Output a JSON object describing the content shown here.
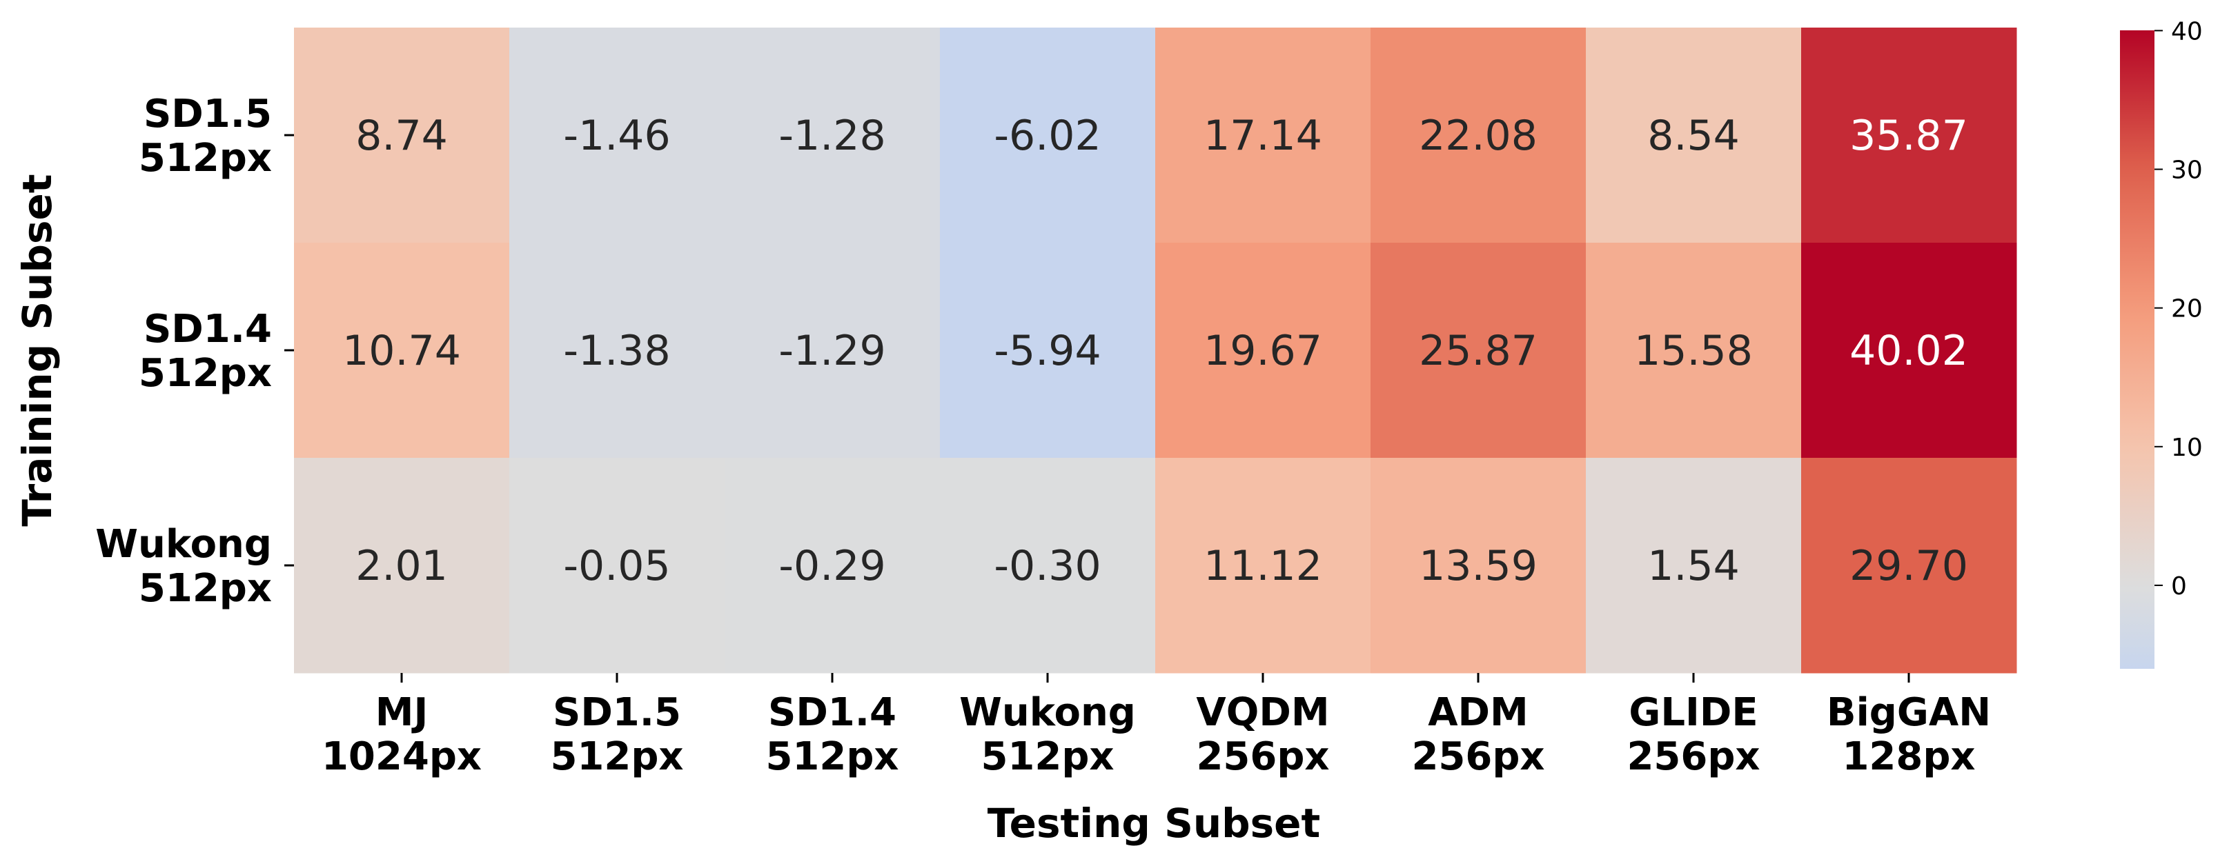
{
  "chart_data": {
    "type": "heatmap",
    "xlabel": "Testing Subset",
    "ylabel": "Training Subset",
    "x_categories": [
      [
        "MJ",
        "1024px"
      ],
      [
        "SD1.5",
        "512px"
      ],
      [
        "SD1.4",
        "512px"
      ],
      [
        "Wukong",
        "512px"
      ],
      [
        "VQDM",
        "256px"
      ],
      [
        "ADM",
        "256px"
      ],
      [
        "GLIDE",
        "256px"
      ],
      [
        "BigGAN",
        "128px"
      ]
    ],
    "y_categories": [
      [
        "SD1.5",
        "512px"
      ],
      [
        "SD1.4",
        "512px"
      ],
      [
        "Wukong",
        "512px"
      ]
    ],
    "values": [
      [
        8.74,
        -1.46,
        -1.28,
        -6.02,
        17.14,
        22.08,
        8.54,
        35.87
      ],
      [
        10.74,
        -1.38,
        -1.29,
        -5.94,
        19.67,
        25.87,
        15.58,
        40.02
      ],
      [
        2.01,
        -0.05,
        -0.29,
        -0.3,
        11.12,
        13.59,
        1.54,
        29.7
      ]
    ],
    "value_labels": [
      [
        "8.74",
        "-1.46",
        "-1.28",
        "-6.02",
        "17.14",
        "22.08",
        "8.54",
        "35.87"
      ],
      [
        "10.74",
        "-1.38",
        "-1.29",
        "-5.94",
        "19.67",
        "25.87",
        "15.58",
        "40.02"
      ],
      [
        "2.01",
        "-0.05",
        "-0.29",
        "-0.30",
        "11.12",
        "13.59",
        "1.54",
        "29.70"
      ]
    ],
    "colormap": "coolwarm",
    "vmin": -6.02,
    "vmax": 40.02,
    "colorbar": {
      "ticks": [
        0,
        10,
        20,
        30,
        40
      ],
      "tick_labels": [
        "0",
        "10",
        "20",
        "30",
        "40"
      ]
    }
  }
}
